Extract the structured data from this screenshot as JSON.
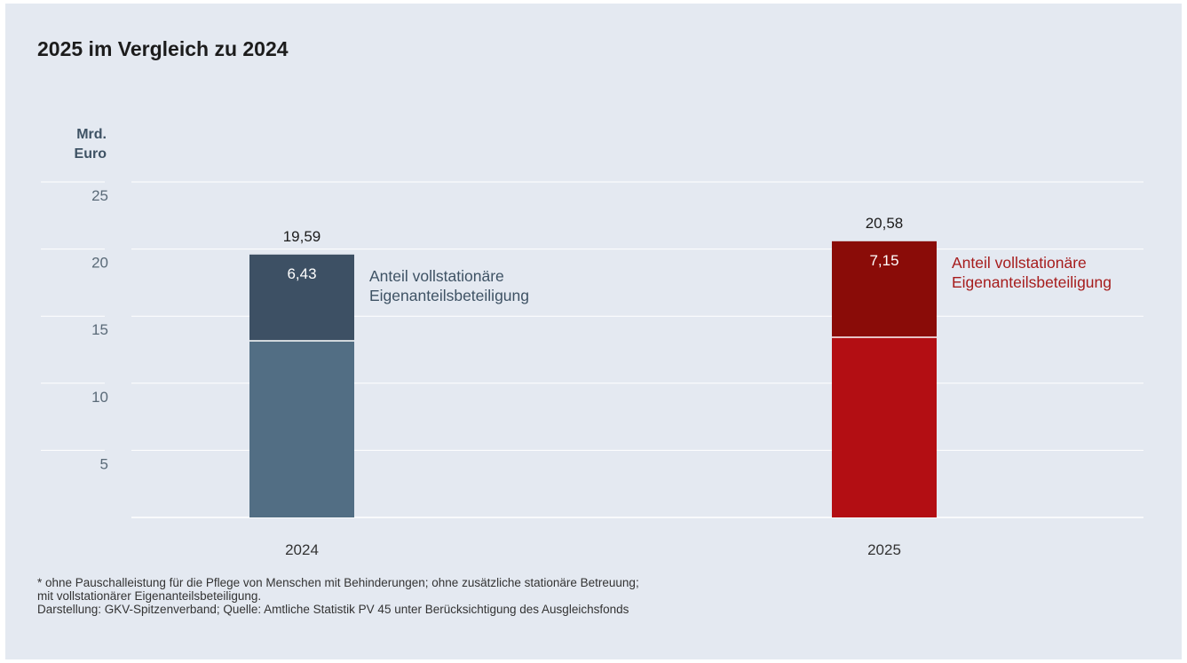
{
  "chart_data": {
    "type": "bar",
    "stacked": true,
    "title": "2025 im Vergleich zu 2024",
    "ylabel": "Mrd. Euro",
    "ylabel_lines": [
      "Mrd.",
      "Euro"
    ],
    "ylim": [
      0,
      25
    ],
    "yticks": [
      5,
      10,
      15,
      20,
      25
    ],
    "grid": true,
    "categories": [
      "2024",
      "2025"
    ],
    "bars": [
      {
        "category": "2024",
        "total": 19.59,
        "total_label": "19,59",
        "segment_top": 6.43,
        "segment_top_label": "6,43",
        "annotation": [
          "Anteil vollstationäre",
          "Eigenanteilsbeteiligung"
        ],
        "colors": {
          "base": "#526e84",
          "top": "#3d5064",
          "annotation": "#3e5264"
        }
      },
      {
        "category": "2025",
        "total": 20.58,
        "total_label": "20,58",
        "segment_top": 7.15,
        "segment_top_label": "7,15",
        "annotation": [
          "Anteil vollstationäre",
          "Eigenanteilsbeteiligung"
        ],
        "colors": {
          "base": "#b30e13",
          "top": "#8a0c08",
          "annotation": "#a61c1c"
        }
      }
    ]
  },
  "footnote": {
    "lines": [
      "* ohne Pauschalleistung für die Pflege von Menschen mit Behinderungen; ohne zusätzliche stationäre Betreuung;",
      "mit vollstationärer Eigenanteilsbeteiligung.",
      "Darstellung: GKV-Spitzenverband; Quelle: Amtliche Statistik PV 45 unter Berücksichtigung des Ausgleichsfonds"
    ]
  },
  "colors": {
    "background": "#e4e9f1",
    "grid": "#ffffff",
    "tick_text": "#5a6a78",
    "label_text": "#1c1c1c"
  }
}
